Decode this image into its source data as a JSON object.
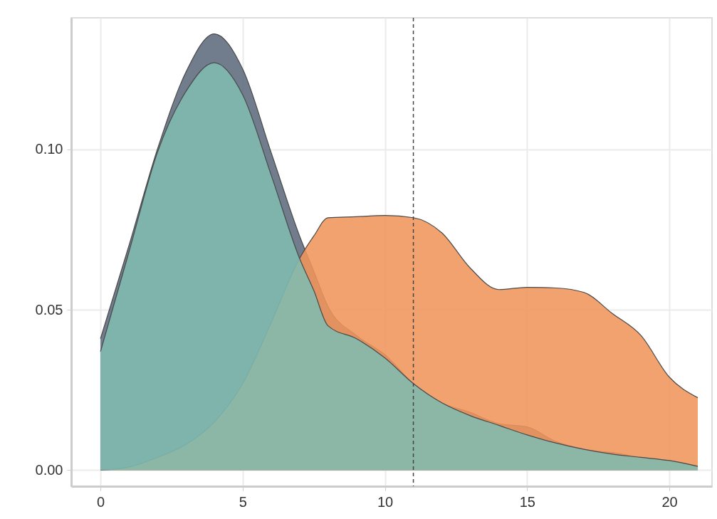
{
  "chart_data": {
    "type": "area",
    "x": [
      0,
      1,
      2,
      3,
      4,
      5,
      6,
      7,
      7.5,
      8,
      9,
      10,
      11,
      12,
      13,
      14,
      15,
      16,
      17,
      18,
      19,
      20,
      21
    ],
    "series": [
      {
        "color": "#5d6b7d",
        "values": [
          0.041,
          0.07,
          0.1,
          0.124,
          0.136,
          0.125,
          0.099,
          0.073,
          0.062,
          0.051,
          0.042,
          0.036,
          0.027,
          0.021,
          0.018,
          0.0145,
          0.0135,
          0.009,
          0.0065,
          0.0055,
          0.004,
          0.003,
          0.0013
        ]
      },
      {
        "color": "#f0955a",
        "values": [
          0,
          0.001,
          0.004,
          0.008,
          0.015,
          0.027,
          0.046,
          0.066,
          0.073,
          0.0787,
          0.079,
          0.0794,
          0.0787,
          0.074,
          0.063,
          0.0563,
          0.057,
          0.0568,
          0.0554,
          0.0488,
          0.042,
          0.029,
          0.0226
        ]
      },
      {
        "color": "#7fbcb0",
        "values": [
          0.037,
          0.068,
          0.099,
          0.118,
          0.127,
          0.117,
          0.092,
          0.066,
          0.056,
          0.045,
          0.041,
          0.035,
          0.027,
          0.021,
          0.017,
          0.014,
          0.011,
          0.0085,
          0.0065,
          0.005,
          0.004,
          0.003,
          0.0012
        ]
      }
    ],
    "xlim": [
      -1.03,
      21.5
    ],
    "xticks": [
      0,
      5,
      10,
      15,
      20
    ],
    "ylim": [
      -0.005,
      0.141
    ],
    "yticks": [
      {
        "value": 0,
        "label": "0.00"
      },
      {
        "value": 0.05,
        "label": "0.05"
      },
      {
        "value": 0.1,
        "label": "0.10"
      }
    ],
    "grid": true,
    "ref_lines": [
      {
        "axis": "x",
        "value": 11,
        "line_style": "dashed"
      }
    ]
  }
}
